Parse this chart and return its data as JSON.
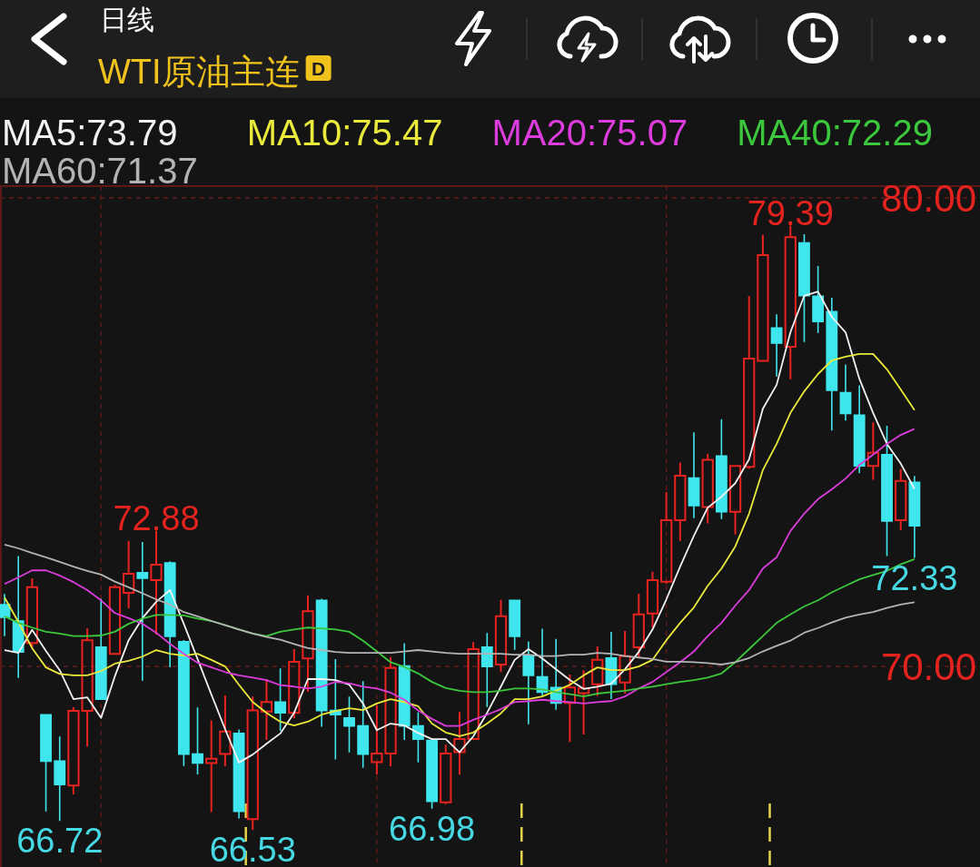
{
  "chart_data": {
    "type": "candlestick",
    "title": "WTI原油主连",
    "subtitle": "日线",
    "categories": [
      null,
      null,
      null,
      null,
      null,
      null,
      null,
      null,
      null,
      null,
      null,
      null,
      null,
      null,
      null,
      null,
      null,
      null,
      null,
      null,
      null,
      null,
      null,
      null,
      null,
      null,
      null,
      null,
      null,
      null,
      null,
      null,
      null,
      null,
      null,
      null,
      null,
      null,
      null,
      null,
      null,
      null,
      null,
      null,
      null,
      null,
      null,
      null,
      null,
      null,
      null,
      null,
      null,
      null,
      null,
      null,
      null,
      null,
      null,
      null,
      null,
      null,
      null,
      null,
      null,
      null,
      null
    ],
    "ohlc": [
      [
        71.32,
        71.53,
        70.66,
        71.05
      ],
      [
        70.97,
        72.34,
        69.77,
        70.31
      ],
      [
        70.5,
        71.86,
        70.43,
        71.69
      ],
      [
        68.97,
        68.97,
        66.92,
        67.98
      ],
      [
        67.98,
        68.49,
        66.72,
        67.48
      ],
      [
        67.46,
        69.11,
        67.29,
        69.05
      ],
      [
        69.05,
        70.79,
        68.31,
        70.56
      ],
      [
        70.41,
        71.43,
        69.3,
        69.3
      ],
      [
        70.27,
        71.72,
        70.27,
        71.69
      ],
      [
        71.57,
        72.66,
        71.26,
        71.98
      ],
      [
        72.0,
        72.64,
        69.71,
        71.88
      ],
      [
        71.84,
        72.88,
        70.7,
        72.17
      ],
      [
        72.21,
        72.23,
        70.0,
        70.64
      ],
      [
        70.53,
        70.55,
        67.89,
        68.13
      ],
      [
        68.13,
        69.11,
        67.71,
        67.94
      ],
      [
        67.94,
        68.83,
        66.91,
        68.03
      ],
      [
        68.13,
        69.36,
        67.89,
        68.61
      ],
      [
        68.57,
        68.64,
        66.77,
        66.91
      ],
      [
        66.74,
        69.34,
        66.53,
        69.06
      ],
      [
        69.04,
        69.71,
        68.45,
        69.24
      ],
      [
        69.24,
        69.94,
        68.64,
        69.01
      ],
      [
        69.01,
        70.35,
        68.91,
        70.1
      ],
      [
        70.17,
        71.5,
        69.48,
        71.18
      ],
      [
        71.41,
        71.43,
        68.73,
        69.06
      ],
      [
        69.06,
        70.14,
        68.03,
        68.97
      ],
      [
        68.9,
        69.34,
        68.18,
        68.73
      ],
      [
        68.73,
        69.67,
        67.85,
        68.13
      ],
      [
        67.96,
        69.15,
        67.71,
        68.14
      ],
      [
        68.14,
        70.18,
        67.89,
        69.97
      ],
      [
        70.01,
        70.48,
        68.45,
        68.73
      ],
      [
        68.73,
        69.01,
        67.97,
        68.45
      ],
      [
        68.42,
        68.45,
        66.98,
        67.12
      ],
      [
        67.1,
        68.31,
        67.08,
        68.14
      ],
      [
        68.17,
        69.01,
        67.71,
        68.45
      ],
      [
        68.45,
        70.5,
        68.45,
        70.37
      ],
      [
        70.41,
        70.7,
        69.15,
        70.0
      ],
      [
        70.04,
        71.4,
        69.9,
        71.07
      ],
      [
        71.41,
        71.41,
        70.37,
        70.64
      ],
      [
        70.22,
        70.52,
        68.78,
        69.81
      ],
      [
        69.78,
        70.79,
        69.39,
        69.45
      ],
      [
        69.55,
        70.57,
        69.09,
        69.22
      ],
      [
        69.22,
        69.81,
        68.41,
        69.55
      ],
      [
        69.43,
        69.9,
        68.57,
        69.53
      ],
      [
        69.62,
        70.41,
        69.39,
        70.14
      ],
      [
        70.18,
        70.72,
        69.32,
        69.62
      ],
      [
        69.66,
        70.74,
        69.44,
        70.22
      ],
      [
        70.41,
        71.53,
        70.22,
        71.11
      ],
      [
        71.13,
        72.0,
        70.85,
        71.84
      ],
      [
        71.81,
        73.7,
        71.78,
        73.12
      ],
      [
        73.12,
        74.33,
        72.7,
        74.07
      ],
      [
        74.02,
        74.98,
        73.18,
        73.43
      ],
      [
        73.4,
        74.52,
        73.07,
        74.41
      ],
      [
        74.49,
        75.26,
        73.16,
        73.3
      ],
      [
        73.3,
        74.28,
        72.84,
        74.28
      ],
      [
        74.26,
        77.88,
        74.24,
        76.57
      ],
      [
        76.52,
        79.19,
        76.52,
        78.78
      ],
      [
        77.22,
        77.5,
        76.2,
        76.9
      ],
      [
        76.82,
        79.39,
        76.15,
        79.16
      ],
      [
        79.04,
        79.21,
        76.94,
        77.91
      ],
      [
        77.9,
        78.53,
        77.13,
        77.36
      ],
      [
        77.57,
        77.85,
        75.05,
        75.89
      ],
      [
        75.84,
        76.43,
        75.26,
        75.4
      ],
      [
        75.36,
        75.98,
        74.14,
        74.28
      ],
      [
        74.28,
        75.19,
        74.0,
        74.56
      ],
      [
        74.52,
        75.12,
        72.37,
        73.1
      ],
      [
        73.12,
        74.19,
        72.93,
        73.96
      ],
      [
        73.93,
        74.05,
        72.33,
        73.0
      ]
    ],
    "colors": [
      "#3fe6ee",
      "#3fe6ee",
      "#e8231f",
      "#3fe6ee",
      "#3fe6ee",
      "#e8231f",
      "#e8231f",
      "#3fe6ee",
      "#e8231f",
      "#e8231f",
      "#3fe6ee",
      "#e8231f",
      "#3fe6ee",
      "#3fe6ee",
      "#3fe6ee",
      "#e8231f",
      "#e8231f",
      "#3fe6ee",
      "#e8231f",
      "#e8231f",
      "#3fe6ee",
      "#e8231f",
      "#e8231f",
      "#3fe6ee",
      "#3fe6ee",
      "#3fe6ee",
      "#3fe6ee",
      "#e8231f",
      "#e8231f",
      "#3fe6ee",
      "#3fe6ee",
      "#3fe6ee",
      "#e8231f",
      "#e8231f",
      "#e8231f",
      "#3fe6ee",
      "#e8231f",
      "#3fe6ee",
      "#3fe6ee",
      "#3fe6ee",
      "#3fe6ee",
      "#e8231f",
      "#e8231f",
      "#e8231f",
      "#3fe6ee",
      "#e8231f",
      "#e8231f",
      "#e8231f",
      "#e8231f",
      "#e8231f",
      "#3fe6ee",
      "#e8231f",
      "#3fe6ee",
      "#e8231f",
      "#e8231f",
      "#e8231f",
      "#3fe6ee",
      "#e8231f",
      "#3fe6ee",
      "#3fe6ee",
      "#3fe6ee",
      "#3fe6ee",
      "#3fe6ee",
      "#e8231f",
      "#3fe6ee",
      "#e8231f",
      "#3fe6ee"
    ],
    "series": [
      {
        "name": "MA5:73.79",
        "type": "line",
        "color": "#f2f2f2",
        "values": [
          70.35,
          70.29,
          70.78,
          70.33,
          69.92,
          69.3,
          69.34,
          68.9,
          69.79,
          70.56,
          71.03,
          71.38,
          71.63,
          70.91,
          70.16,
          69.4,
          68.66,
          67.95,
          68.12,
          68.35,
          68.57,
          69.01,
          69.73,
          69.73,
          69.71,
          69.61,
          69.21,
          68.64,
          68.78,
          68.74,
          68.58,
          68.45,
          68.45,
          68.17,
          68.51,
          69.01,
          69.57,
          70.14,
          70.37,
          70.17,
          69.94,
          69.71,
          69.52,
          69.57,
          69.63,
          69.94,
          70.31,
          70.79,
          71.43,
          72.13,
          72.79,
          73.39,
          73.62,
          73.91,
          74.42,
          75.5,
          76.01,
          77.13,
          77.91,
          78.0,
          77.46,
          77.13,
          76.14,
          75.41,
          74.75,
          74.33,
          73.79
        ]
      },
      {
        "name": "MA10:75.47",
        "type": "line",
        "color": "#eaea3c",
        "values": [
          71.47,
          70.95,
          70.39,
          69.98,
          69.84,
          69.81,
          69.81,
          69.9,
          70.06,
          70.12,
          70.21,
          70.35,
          70.27,
          70.23,
          70.27,
          70.14,
          70.0,
          69.61,
          69.24,
          69.01,
          68.82,
          68.74,
          68.82,
          68.97,
          69.05,
          69.11,
          69.07,
          69.21,
          69.3,
          69.24,
          69.15,
          68.78,
          68.59,
          68.51,
          68.59,
          68.78,
          69.0,
          69.3,
          69.3,
          69.36,
          69.48,
          69.61,
          69.81,
          69.98,
          69.92,
          69.92,
          70.0,
          70.14,
          70.56,
          70.93,
          71.26,
          71.72,
          72.09,
          72.56,
          73.26,
          74.19,
          74.75,
          75.41,
          75.87,
          76.24,
          76.53,
          76.61,
          76.67,
          76.67,
          76.34,
          75.91,
          75.47
        ]
      },
      {
        "name": "MA20:75.07",
        "type": "line",
        "color": "#dd3cdd",
        "values": [
          71.76,
          71.9,
          72.05,
          72.05,
          71.94,
          71.8,
          71.63,
          71.41,
          71.14,
          71.03,
          70.91,
          70.72,
          70.48,
          70.27,
          70.08,
          69.98,
          69.88,
          69.81,
          69.76,
          69.71,
          69.6,
          69.57,
          69.53,
          69.57,
          69.67,
          69.64,
          69.57,
          69.53,
          69.44,
          69.29,
          69.06,
          68.88,
          68.73,
          68.73,
          68.86,
          68.97,
          69.09,
          69.24,
          69.26,
          69.29,
          69.26,
          69.24,
          69.21,
          69.24,
          69.26,
          69.36,
          69.53,
          69.67,
          69.88,
          70.09,
          70.32,
          70.65,
          70.93,
          71.3,
          71.63,
          72.09,
          72.33,
          72.89,
          73.26,
          73.57,
          73.78,
          74.01,
          74.3,
          74.52,
          74.75,
          74.94,
          75.07
        ]
      },
      {
        "name": "MA40:72.29",
        "type": "line",
        "color": "#3cc83c",
        "values": [
          71.07,
          70.93,
          70.83,
          70.74,
          70.7,
          70.65,
          70.65,
          70.66,
          70.74,
          70.91,
          71.02,
          71.1,
          71.1,
          71.09,
          71.02,
          70.97,
          70.88,
          70.79,
          70.7,
          70.65,
          70.74,
          70.79,
          70.83,
          70.81,
          70.79,
          70.74,
          70.55,
          70.32,
          70.09,
          69.99,
          69.85,
          69.67,
          69.54,
          69.48,
          69.45,
          69.45,
          69.48,
          69.53,
          69.53,
          69.51,
          69.45,
          69.41,
          69.36,
          69.42,
          69.45,
          69.48,
          69.53,
          69.57,
          69.62,
          69.67,
          69.71,
          69.76,
          69.85,
          70.09,
          70.37,
          70.65,
          70.93,
          71.11,
          71.28,
          71.41,
          71.58,
          71.72,
          71.86,
          71.95,
          72.04,
          72.18,
          72.29
        ]
      },
      {
        "name": "MA60:71.37",
        "type": "line",
        "color": "#b4b4b4",
        "values": [
          72.6,
          72.52,
          72.42,
          72.33,
          72.23,
          72.13,
          72.04,
          71.96,
          71.81,
          71.69,
          71.56,
          71.43,
          71.32,
          71.16,
          71.07,
          70.97,
          70.88,
          70.79,
          70.7,
          70.63,
          70.57,
          70.48,
          70.39,
          70.35,
          70.31,
          70.29,
          70.29,
          70.29,
          70.29,
          70.32,
          70.35,
          70.32,
          70.29,
          70.27,
          70.27,
          70.27,
          70.27,
          70.25,
          70.25,
          70.22,
          70.22,
          70.25,
          70.25,
          70.29,
          70.27,
          70.22,
          70.19,
          70.16,
          70.1,
          70.1,
          70.09,
          70.07,
          70.04,
          70.09,
          70.18,
          70.32,
          70.44,
          70.55,
          70.72,
          70.82,
          70.94,
          71.04,
          71.11,
          71.16,
          71.25,
          71.32,
          71.37
        ]
      }
    ],
    "ylim": [
      65.72,
      80.25
    ],
    "yticks": [
      {
        "value": 80,
        "label": "80.00"
      },
      {
        "value": 70,
        "label": "70.00"
      }
    ],
    "grid": true,
    "legend": "top",
    "annotations": [
      "D",
      {
        "text": "79.39",
        "y": 79.39
      },
      {
        "text": "72.88",
        "y": 72.88
      },
      {
        "text": "66.72",
        "y": 66.72
      },
      {
        "text": "66.53",
        "y": 66.53
      },
      {
        "text": "66.98",
        "y": 66.98
      },
      {
        "text": "72.33",
        "y": 72.33
      }
    ]
  }
}
